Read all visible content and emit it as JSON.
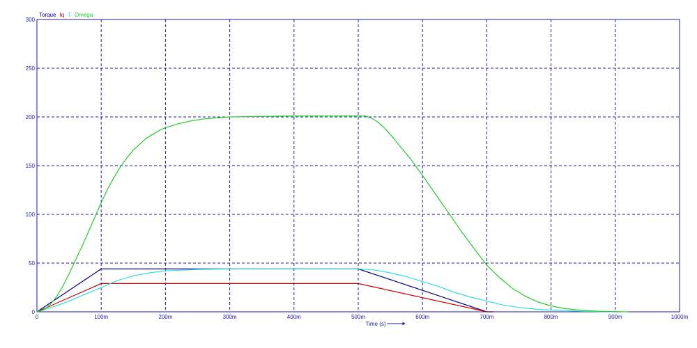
{
  "chart_data": {
    "type": "line",
    "xlabel": "Time (s)",
    "ylabel": "",
    "xlim": [
      0,
      1000
    ],
    "ylim": [
      0,
      300
    ],
    "x_ticks": [
      0,
      100,
      200,
      300,
      400,
      500,
      600,
      700,
      800,
      900,
      1000
    ],
    "x_tick_labels": [
      "0",
      "100m",
      "200m",
      "300m",
      "400m",
      "500m",
      "600m",
      "700m",
      "800m",
      "900m",
      "1000m"
    ],
    "y_ticks": [
      0,
      50,
      100,
      150,
      200,
      250,
      300
    ],
    "y_tick_labels": [
      "0",
      "50",
      "100",
      "150",
      "200",
      "250",
      "300"
    ],
    "grid": true,
    "legend_position": "top-left",
    "series": [
      {
        "name": "Torque",
        "color": "#00008b",
        "x": [
          0,
          100,
          500,
          700,
          710
        ],
        "y": [
          0,
          44,
          44,
          0,
          0
        ]
      },
      {
        "name": "Iq",
        "color": "#cc0000",
        "x": [
          0,
          100,
          500,
          700
        ],
        "y": [
          0,
          29,
          29,
          0
        ]
      },
      {
        "name": "T",
        "color": "#33dddd",
        "x": [
          0,
          25,
          50,
          75,
          100,
          125,
          150,
          175,
          200,
          250,
          300,
          400,
          500,
          525,
          550,
          575,
          600,
          625,
          650,
          675,
          700,
          725,
          750,
          775,
          800,
          850,
          900
        ],
        "y": [
          0,
          5,
          11,
          18,
          25,
          32,
          37,
          40,
          42,
          43.5,
          44,
          44,
          44,
          43,
          40,
          36,
          31,
          26,
          20,
          15,
          11,
          7,
          4.5,
          2.8,
          1.8,
          0.5,
          0
        ]
      },
      {
        "name": "Omega",
        "color": "#22cc22",
        "x": [
          0,
          10,
          20,
          30,
          40,
          50,
          60,
          70,
          80,
          90,
          100,
          110,
          120,
          130,
          140,
          150,
          160,
          170,
          180,
          190,
          200,
          220,
          240,
          260,
          280,
          300,
          350,
          400,
          450,
          500,
          510,
          520,
          530,
          540,
          550,
          560,
          580,
          600,
          620,
          640,
          660,
          680,
          700,
          720,
          740,
          760,
          780,
          800,
          820,
          840,
          860,
          880,
          900,
          920
        ],
        "y": [
          0,
          2,
          7,
          15,
          26,
          39,
          53,
          67,
          82,
          97,
          112,
          126,
          138,
          149,
          158,
          166,
          172,
          178,
          182,
          186,
          189,
          193,
          196,
          198,
          199,
          200,
          200.5,
          201,
          201,
          201,
          201,
          199,
          195,
          189,
          182,
          174,
          158,
          140,
          121,
          102,
          83,
          65,
          48,
          35,
          24,
          16,
          10,
          6,
          3.5,
          2,
          1,
          0.5,
          0.2,
          0
        ]
      }
    ]
  }
}
